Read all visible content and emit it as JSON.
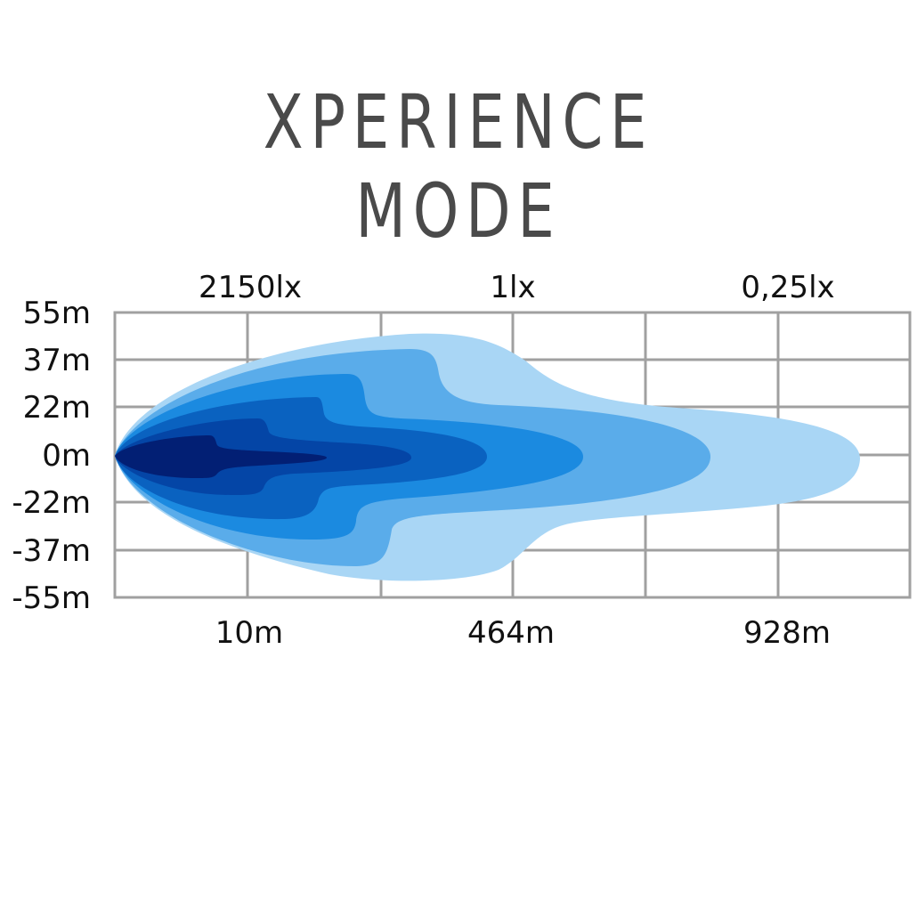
{
  "title": {
    "line1": "XPERIENCE",
    "line2": "MODE"
  },
  "lux_labels": [
    "2150lx",
    "1lx",
    "0,25lx"
  ],
  "y_labels": [
    "55m",
    "37m",
    "22m",
    "0m",
    "-22m",
    "-37m",
    "-55m"
  ],
  "x_labels": [
    "10m",
    "464m",
    "928m"
  ],
  "colors": {
    "grid": "#a0a0a0",
    "zones": [
      "#a9d6f5",
      "#5aacea",
      "#1b8ae0",
      "#0a62c0",
      "#0445a6",
      "#021f74"
    ],
    "title": "#4a4a4a"
  }
}
